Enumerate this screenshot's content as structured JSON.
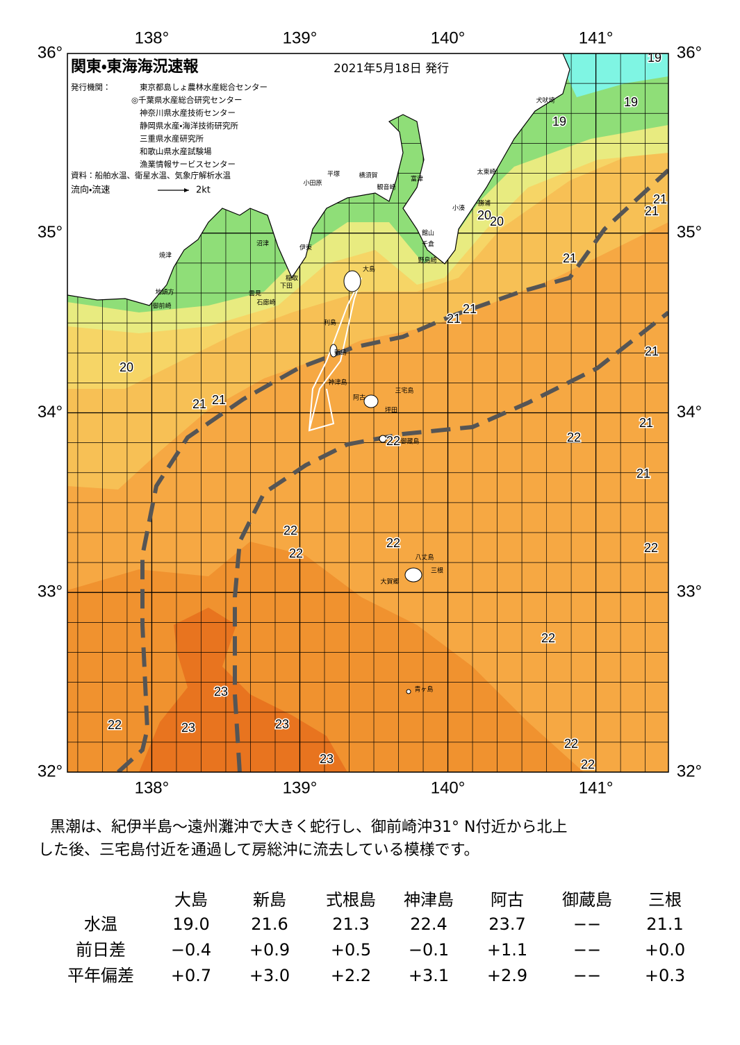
{
  "header": {
    "title": "関東・東海海況速報",
    "date": "2021年5月18日 発行"
  },
  "issuers": {
    "label": "発行機関：",
    "names": [
      "東京都島しょ農林水産総合センター",
      "◎千葉県水産総合研究センター",
      "神奈川県水産技術センター",
      "静岡県水産・海洋技術研究所",
      "三重県水産研究所",
      "和歌山県水産試験場",
      "漁業情報サービスセンター"
    ]
  },
  "source": "資料：船舶水温、衛星水温、気象庁解析水温",
  "legend": {
    "label": "流向・流速",
    "scale": "2kt"
  },
  "map": {
    "lonlim": [
      137.43,
      141.49
    ],
    "latlim": [
      32,
      36
    ],
    "lon_ticks": [
      {
        "value": 138,
        "label": "138°"
      },
      {
        "value": 139,
        "label": "139°"
      },
      {
        "value": 140,
        "label": "140°"
      },
      {
        "value": 141,
        "label": "141°"
      }
    ],
    "lat_ticks": [
      {
        "value": 36,
        "label": "36°"
      },
      {
        "value": 35,
        "label": "35°"
      },
      {
        "value": 34,
        "label": "34°"
      },
      {
        "value": 33,
        "label": "33°"
      },
      {
        "value": 32,
        "label": "32°"
      }
    ],
    "isotherm_labels": [
      19,
      19,
      19,
      20,
      20,
      20,
      21,
      21,
      21,
      21,
      21,
      21,
      21,
      21,
      21,
      21,
      22,
      22,
      22,
      22,
      22,
      22,
      22,
      22,
      22,
      22,
      23,
      23,
      23,
      23
    ],
    "place_names": [
      "犬吠埼",
      "太東崎",
      "勝浦",
      "小湊",
      "館山",
      "千倉",
      "野島崎",
      "富津",
      "横須賀",
      "観音崎",
      "平塚",
      "小田原",
      "沼津",
      "伊東",
      "稲取",
      "下田",
      "雲見",
      "石廊崎",
      "焼津",
      "地頭方",
      "御前崎",
      "大島",
      "利島",
      "新島",
      "神津島",
      "三宅島",
      "阿古",
      "坪田",
      "御蔵島",
      "八丈島",
      "三根",
      "大賀郷",
      "青ヶ島"
    ]
  },
  "summary": [
    "黒潮は、紀伊半島～遠州灘沖で大きく蛇行し、御前崎沖31° N付近から北上",
    "した後、三宅島付近を通過して房総沖に流去している模様です。"
  ],
  "table": {
    "columns": [
      "大島",
      "新島",
      "式根島",
      "神津島",
      "阿古",
      "御蔵島",
      "三根"
    ],
    "rows": [
      {
        "label": "水温",
        "values": [
          "19.0",
          "21.6",
          "21.3",
          "22.4",
          "23.7",
          "−−",
          "21.1"
        ]
      },
      {
        "label": "前日差",
        "values": [
          "−0.4",
          "+0.9",
          "+0.5",
          "−0.1",
          "+1.1",
          "−−",
          "+0.0"
        ]
      },
      {
        "label": "平年偏差",
        "values": [
          "+0.7",
          "+3.0",
          "+2.2",
          "+3.1",
          "+2.9",
          "−−",
          "+0.3"
        ]
      }
    ]
  }
}
